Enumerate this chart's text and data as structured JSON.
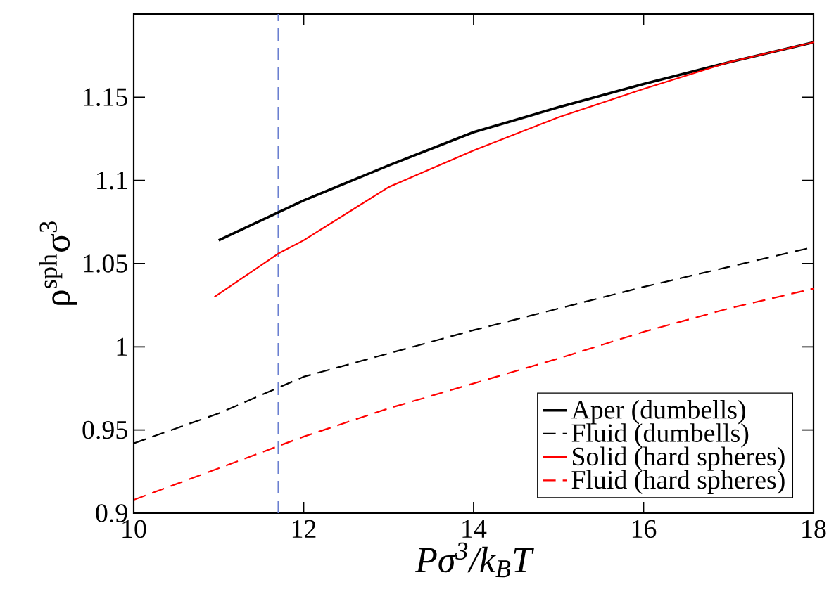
{
  "chart_data": {
    "type": "line",
    "xlabel": "Pσ$^{3}$/k$_{B}$T",
    "ylabel": "ρ$^{sph}$σ$^{3}$",
    "xlim": [
      10,
      18
    ],
    "ylim": [
      0.9,
      1.2
    ],
    "xticks": [
      10,
      12,
      14,
      16,
      18
    ],
    "yticks": [
      0.9,
      0.95,
      1,
      1.05,
      1.1,
      1.15
    ],
    "grid": false,
    "legend": "bottom right",
    "marker": "none",
    "ref_lines": [
      {
        "axis": "x",
        "value": 11.7,
        "color": "#6a7fd0",
        "line_style": "dashed"
      }
    ],
    "series": [
      {
        "name": "Aper (dumbells)",
        "color": "#000000",
        "line_style": "solid",
        "x": [
          11,
          12,
          13,
          14,
          15,
          16,
          17,
          18
        ],
        "values": [
          1.064,
          1.088,
          1.109,
          1.129,
          1.144,
          1.158,
          1.171,
          1.183
        ]
      },
      {
        "name": "Fluid (dumbells)",
        "color": "#000000",
        "line_style": "dashed",
        "x": [
          10,
          11,
          12,
          13,
          14,
          15,
          16,
          17,
          18
        ],
        "values": [
          0.942,
          0.96,
          0.982,
          0.996,
          1.01,
          1.023,
          1.036,
          1.048,
          1.06
        ]
      },
      {
        "name": "Solid (hard spheres)",
        "color": "#ff0000",
        "line_style": "solid",
        "x": [
          10.95,
          11.7,
          12,
          13,
          14,
          15,
          16,
          17,
          18
        ],
        "values": [
          1.03,
          1.056,
          1.064,
          1.096,
          1.118,
          1.138,
          1.155,
          1.171,
          1.183
        ]
      },
      {
        "name": "Fluid (hard spheres)",
        "color": "#ff0000",
        "line_style": "dashed",
        "x": [
          10,
          11,
          12,
          13,
          14,
          15,
          16,
          17,
          18
        ],
        "values": [
          0.908,
          0.927,
          0.946,
          0.963,
          0.978,
          0.993,
          1.009,
          1.023,
          1.035
        ]
      }
    ]
  }
}
